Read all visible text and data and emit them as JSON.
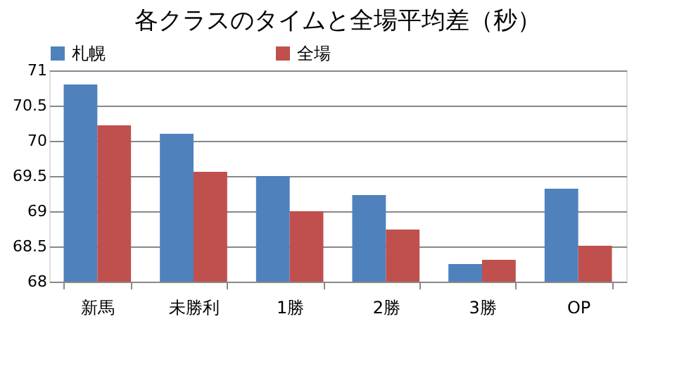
{
  "chart_data": {
    "type": "bar",
    "title": "各クラスのタイムと全場平均差（秒）",
    "categories": [
      "新馬",
      "未勝利",
      "1勝",
      "2勝",
      "3勝",
      "OP"
    ],
    "series": [
      {
        "name": "札幌",
        "color": "#4f81bd",
        "values": [
          70.8,
          70.1,
          69.5,
          69.23,
          68.25,
          69.32
        ]
      },
      {
        "name": "全場",
        "color": "#c0504d",
        "values": [
          70.22,
          69.56,
          69.0,
          68.74,
          68.31,
          68.51
        ]
      }
    ],
    "ylim": [
      68,
      71
    ],
    "yticks": [
      68,
      68.5,
      69,
      69.5,
      70,
      70.5,
      71
    ],
    "grid": "y",
    "legend": "top left"
  }
}
